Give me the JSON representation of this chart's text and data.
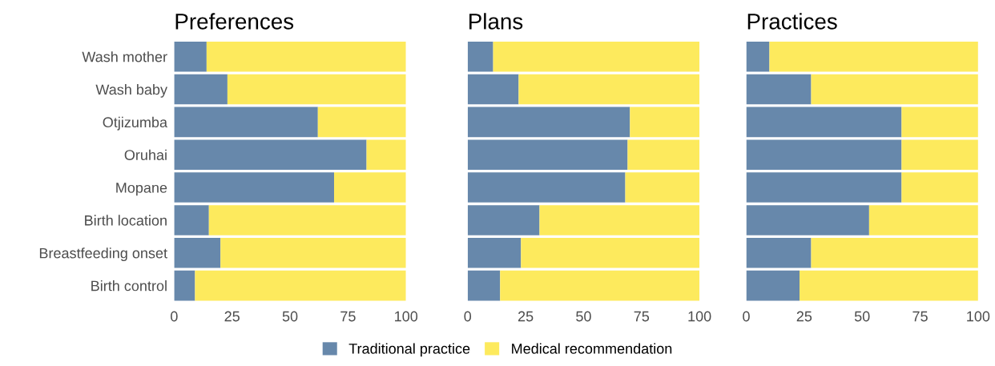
{
  "chart_data": [
    {
      "type": "bar",
      "orientation": "horizontal",
      "stacked": true,
      "title": "Preferences",
      "categories": [
        "Wash mother",
        "Wash baby",
        "Otjizumba",
        "Oruhai",
        "Mopane",
        "Birth location",
        "Breastfeeding onset",
        "Birth control"
      ],
      "series": [
        {
          "name": "Traditional practice",
          "color": "#6788ab",
          "values": [
            14,
            23,
            62,
            83,
            69,
            15,
            20,
            9
          ]
        },
        {
          "name": "Medical recommendation",
          "color": "#fdea5d",
          "values": [
            86,
            77,
            38,
            17,
            31,
            85,
            80,
            91
          ]
        }
      ],
      "xlim": [
        0,
        100
      ],
      "xticks": [
        0,
        25,
        50,
        75,
        100
      ],
      "grid": false,
      "legend": "bottom"
    },
    {
      "type": "bar",
      "orientation": "horizontal",
      "stacked": true,
      "title": "Plans",
      "categories": [
        null,
        null,
        null,
        null,
        null,
        null,
        null,
        null
      ],
      "series": [
        {
          "color": "#6788ab",
          "values": [
            11,
            22,
            70,
            69,
            68,
            31,
            23,
            14
          ]
        },
        {
          "color": "#fdea5d",
          "values": [
            89,
            78,
            30,
            31,
            32,
            69,
            77,
            86
          ]
        }
      ],
      "xlim": [
        0,
        100
      ],
      "xticks": [
        0,
        25,
        50,
        75,
        100
      ],
      "grid": false,
      "tick_labels": "x"
    },
    {
      "type": "bar",
      "orientation": "horizontal",
      "stacked": true,
      "title": "Practices",
      "categories": [
        null,
        null,
        null,
        null,
        null,
        null,
        null,
        null
      ],
      "series": [
        {
          "color": "#6788ab",
          "values": [
            10,
            28,
            67,
            67,
            67,
            53,
            28,
            23
          ]
        },
        {
          "color": "#fdea5d",
          "values": [
            90,
            72,
            33,
            33,
            33,
            47,
            72,
            77
          ]
        }
      ],
      "xlim": [
        0,
        100
      ],
      "xticks": [
        0,
        25,
        50,
        75,
        100
      ],
      "grid": false,
      "tick_labels": "x"
    }
  ]
}
